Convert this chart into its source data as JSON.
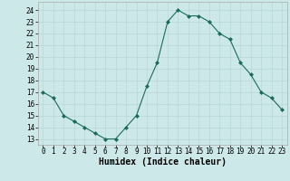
{
  "x": [
    0,
    1,
    2,
    3,
    4,
    5,
    6,
    7,
    8,
    9,
    10,
    11,
    12,
    13,
    14,
    15,
    16,
    17,
    18,
    19,
    20,
    21,
    22,
    23
  ],
  "y": [
    17,
    16.5,
    15,
    14.5,
    14,
    13.5,
    13,
    13,
    14,
    15,
    17.5,
    19.5,
    23,
    24,
    23.5,
    23.5,
    23,
    22,
    21.5,
    19.5,
    18.5,
    17,
    16.5,
    15.5
  ],
  "line_color": "#1a6b5a",
  "marker_color": "#1a6b5a",
  "bg_color": "#cde8e8",
  "grid_color": "#b8d8d8",
  "xlabel": "Humidex (Indice chaleur)",
  "xlim": [
    -0.5,
    23.5
  ],
  "ylim": [
    12.5,
    24.7
  ],
  "yticks": [
    13,
    14,
    15,
    16,
    17,
    18,
    19,
    20,
    21,
    22,
    23,
    24
  ],
  "xticks": [
    0,
    1,
    2,
    3,
    4,
    5,
    6,
    7,
    8,
    9,
    10,
    11,
    12,
    13,
    14,
    15,
    16,
    17,
    18,
    19,
    20,
    21,
    22,
    23
  ],
  "xlabel_fontsize": 7,
  "tick_fontsize": 5.5,
  "marker_size": 2.0,
  "linewidth": 0.8
}
